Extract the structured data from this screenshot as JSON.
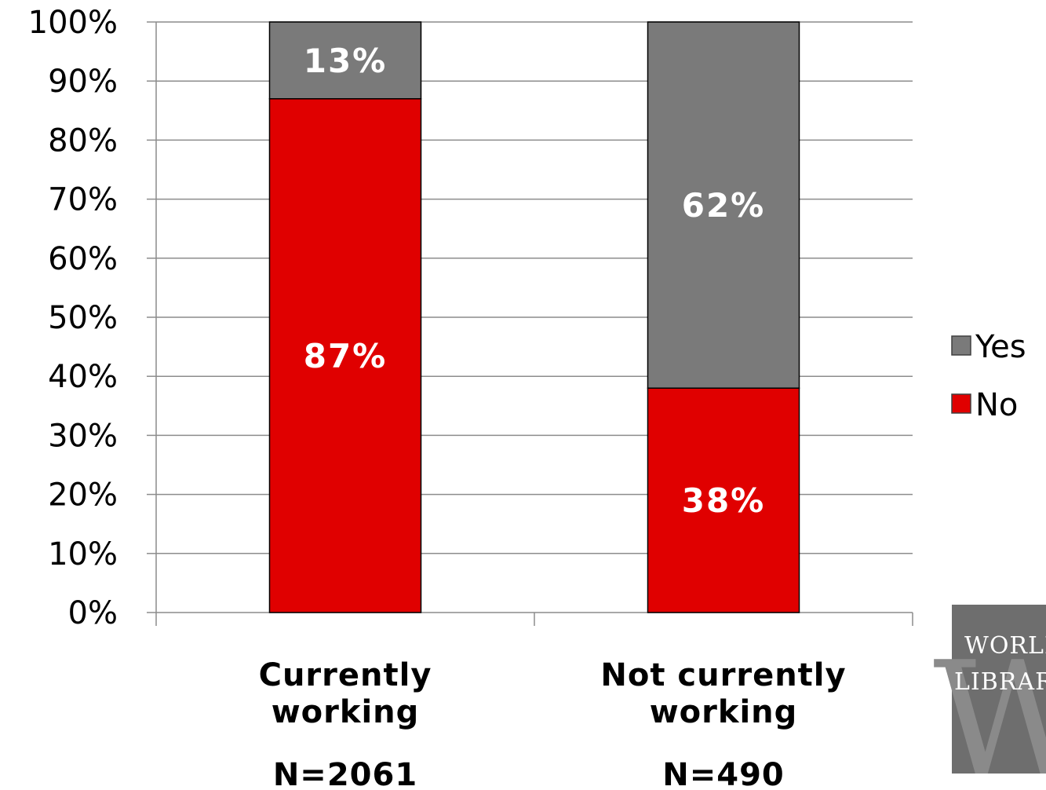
{
  "chart_data": {
    "type": "bar",
    "stacked": true,
    "categories": [
      "Currently working",
      "Not currently working"
    ],
    "category_lines": [
      [
        "Currently",
        "working"
      ],
      [
        "Not currently",
        "working"
      ]
    ],
    "category_n": [
      "N=2061",
      "N=490"
    ],
    "series": [
      {
        "name": "No",
        "values": [
          87,
          38
        ],
        "labels": [
          "87%",
          "38%"
        ],
        "color": "#e00000"
      },
      {
        "name": "Yes",
        "values": [
          13,
          62
        ],
        "labels": [
          "13%",
          "62%"
        ],
        "color": "#7a7a7a"
      }
    ],
    "yticks": [
      "0%",
      "10%",
      "20%",
      "30%",
      "40%",
      "50%",
      "60%",
      "70%",
      "80%",
      "90%",
      "100%"
    ],
    "ylim": [
      0,
      100
    ],
    "grid": true,
    "legend": {
      "position": "right",
      "items": [
        {
          "name": "Yes",
          "color": "#7a7a7a"
        },
        {
          "name": "No",
          "color": "#e00000"
        }
      ]
    },
    "title": "",
    "xlabel": "",
    "ylabel": ""
  },
  "logo": {
    "line1": "WORLD",
    "line2": "LIBRARY",
    "mark": "W",
    "color": "#6e6e6e"
  }
}
